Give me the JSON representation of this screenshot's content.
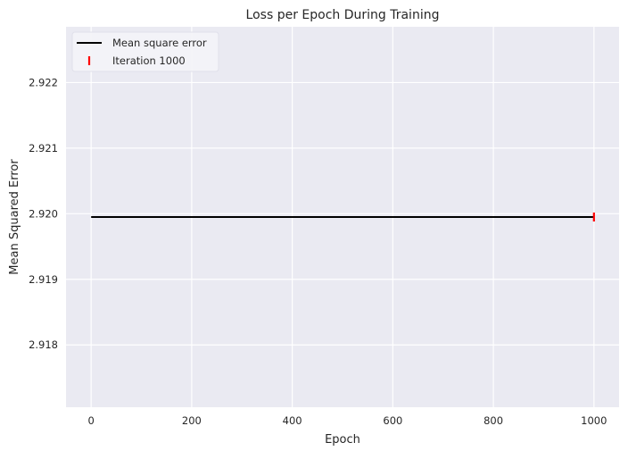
{
  "chart_data": {
    "type": "line",
    "title": "Loss per Epoch During Training",
    "xlabel": "Epoch",
    "ylabel": "Mean Squared Error",
    "xlim": [
      -50,
      1050
    ],
    "ylim": [
      2.91705,
      2.92285
    ],
    "xticks": [
      0,
      200,
      400,
      600,
      800,
      1000
    ],
    "yticks": [
      2.918,
      2.919,
      2.92,
      2.921,
      2.922
    ],
    "ytick_labels": [
      "2.918",
      "2.919",
      "2.920",
      "2.921",
      "2.922"
    ],
    "grid": true,
    "legend_position": "top-left",
    "series": [
      {
        "name": "Mean square error",
        "kind": "line",
        "color": "#000000",
        "x": [
          0,
          1000
        ],
        "y": [
          2.91995,
          2.91995
        ]
      },
      {
        "name": "Iteration 1000",
        "kind": "marker",
        "marker": "|",
        "color": "#ff0000",
        "x": [
          1000
        ],
        "y": [
          2.91995
        ]
      }
    ],
    "colors": {
      "background": "#eaeaf2",
      "grid": "#ffffff"
    }
  }
}
